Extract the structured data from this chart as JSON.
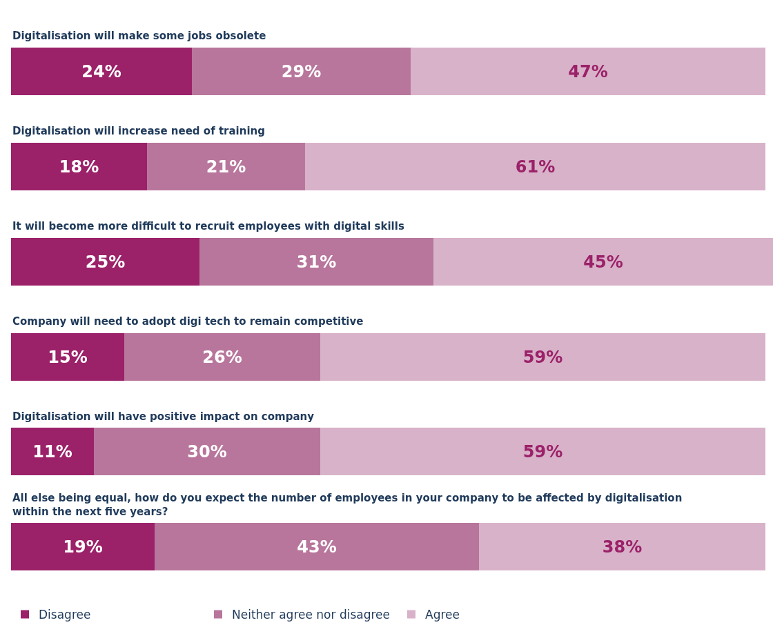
{
  "chart_data": {
    "type": "bar",
    "orientation": "horizontal",
    "stacked": true,
    "legend": "bottom",
    "tick_labels": false,
    "categories": [
      "Digitalisation will make some jobs obsolete",
      "Digitalisation will increase need of training",
      "It will become more difficult to recruit employees with digital skills",
      "Company will need to adopt digi tech to remain competitive",
      "Digitalisation will have positive impact on company",
      "All else being equal, how do you expect the number of employees in your company to be affected by digitalisation within the next five years?"
    ],
    "series": [
      {
        "name": "Disagree",
        "color": "#9b2169",
        "values": [
          24,
          18,
          25,
          15,
          11,
          19
        ],
        "value_labels": [
          "24%",
          "18%",
          "25%",
          "15%",
          "11%",
          "19%"
        ]
      },
      {
        "name": "Neither agree nor disagree",
        "color": "#b8769c",
        "values": [
          29,
          21,
          31,
          26,
          30,
          43
        ],
        "value_labels": [
          "29%",
          "21%",
          "31%",
          "26%",
          "30%",
          "43%"
        ]
      },
      {
        "name": "Agree",
        "color": "#d8b2c8",
        "values": [
          47,
          61,
          45,
          59,
          59,
          38
        ],
        "value_labels": [
          "47%",
          "61%",
          "45%",
          "59%",
          "59%",
          "38%"
        ]
      }
    ]
  }
}
